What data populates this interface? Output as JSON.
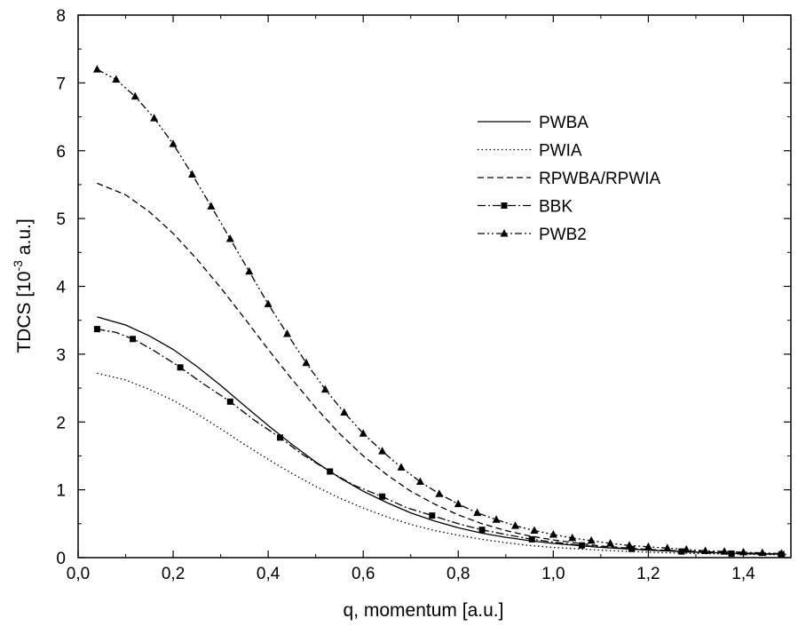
{
  "chart_data": {
    "type": "line",
    "xlabel": "q, momentum [a.u.]",
    "ylabel": {
      "prefix": "TDCS [10",
      "exponent": "-3",
      "suffix": " a.u.]"
    },
    "xlim": [
      0.0,
      1.5
    ],
    "ylim": [
      0,
      8
    ],
    "x_ticks": [
      0.0,
      0.2,
      0.4,
      0.6,
      0.8,
      1.0,
      1.2,
      1.4
    ],
    "x_tick_labels": [
      "0,0",
      "0,2",
      "0,4",
      "0,6",
      "0,8",
      "1,0",
      "1,2",
      "1,4"
    ],
    "y_ticks": [
      0,
      1,
      2,
      3,
      4,
      5,
      6,
      7,
      8
    ],
    "y_tick_labels": [
      "0",
      "1",
      "2",
      "3",
      "4",
      "5",
      "6",
      "7",
      "8"
    ],
    "grid": false,
    "legend_position": "top-right",
    "series": [
      {
        "name": "PWBA",
        "style": "solid",
        "marker": "none",
        "points": [
          [
            0.04,
            3.55
          ],
          [
            0.1,
            3.43
          ],
          [
            0.15,
            3.27
          ],
          [
            0.2,
            3.07
          ],
          [
            0.25,
            2.82
          ],
          [
            0.3,
            2.54
          ],
          [
            0.35,
            2.24
          ],
          [
            0.4,
            1.95
          ],
          [
            0.45,
            1.67
          ],
          [
            0.5,
            1.41
          ],
          [
            0.55,
            1.18
          ],
          [
            0.6,
            0.98
          ],
          [
            0.65,
            0.81
          ],
          [
            0.7,
            0.66
          ],
          [
            0.75,
            0.54
          ],
          [
            0.8,
            0.44
          ],
          [
            0.85,
            0.36
          ],
          [
            0.9,
            0.3
          ],
          [
            0.95,
            0.25
          ],
          [
            1.0,
            0.21
          ],
          [
            1.1,
            0.15
          ],
          [
            1.2,
            0.11
          ],
          [
            1.3,
            0.08
          ],
          [
            1.4,
            0.06
          ],
          [
            1.49,
            0.05
          ]
        ]
      },
      {
        "name": "PWIA",
        "style": "dotted",
        "marker": "none",
        "points": [
          [
            0.04,
            2.72
          ],
          [
            0.1,
            2.62
          ],
          [
            0.15,
            2.48
          ],
          [
            0.2,
            2.32
          ],
          [
            0.25,
            2.12
          ],
          [
            0.3,
            1.9
          ],
          [
            0.35,
            1.67
          ],
          [
            0.4,
            1.45
          ],
          [
            0.45,
            1.24
          ],
          [
            0.5,
            1.05
          ],
          [
            0.55,
            0.88
          ],
          [
            0.6,
            0.73
          ],
          [
            0.65,
            0.6
          ],
          [
            0.7,
            0.49
          ],
          [
            0.75,
            0.4
          ],
          [
            0.8,
            0.33
          ],
          [
            0.85,
            0.27
          ],
          [
            0.9,
            0.22
          ],
          [
            0.95,
            0.18
          ],
          [
            1.0,
            0.15
          ],
          [
            1.1,
            0.11
          ],
          [
            1.2,
            0.08
          ],
          [
            1.3,
            0.06
          ],
          [
            1.4,
            0.05
          ],
          [
            1.49,
            0.04
          ]
        ]
      },
      {
        "name": "RPWBA/RPWIA",
        "style": "dashed",
        "marker": "none",
        "points": [
          [
            0.04,
            5.52
          ],
          [
            0.1,
            5.35
          ],
          [
            0.15,
            5.1
          ],
          [
            0.2,
            4.78
          ],
          [
            0.25,
            4.4
          ],
          [
            0.3,
            3.98
          ],
          [
            0.35,
            3.53
          ],
          [
            0.4,
            3.07
          ],
          [
            0.45,
            2.63
          ],
          [
            0.5,
            2.21
          ],
          [
            0.55,
            1.83
          ],
          [
            0.6,
            1.5
          ],
          [
            0.65,
            1.22
          ],
          [
            0.7,
            0.98
          ],
          [
            0.75,
            0.79
          ],
          [
            0.8,
            0.63
          ],
          [
            0.85,
            0.5
          ],
          [
            0.9,
            0.4
          ],
          [
            0.95,
            0.32
          ],
          [
            1.0,
            0.26
          ],
          [
            1.1,
            0.17
          ],
          [
            1.2,
            0.12
          ],
          [
            1.3,
            0.09
          ],
          [
            1.4,
            0.07
          ],
          [
            1.49,
            0.05
          ]
        ]
      },
      {
        "name": "BBK",
        "style": "dash-dot",
        "marker": "square",
        "points": [
          [
            0.04,
            3.37
          ],
          [
            0.08,
            3.32
          ],
          [
            0.12,
            3.21
          ],
          [
            0.16,
            3.05
          ],
          [
            0.21,
            2.83
          ],
          [
            0.26,
            2.58
          ],
          [
            0.32,
            2.3
          ],
          [
            0.37,
            2.03
          ],
          [
            0.425,
            1.77
          ],
          [
            0.47,
            1.53
          ],
          [
            0.53,
            1.27
          ],
          [
            0.58,
            1.07
          ],
          [
            0.64,
            0.9
          ],
          [
            0.69,
            0.74
          ],
          [
            0.745,
            0.62
          ],
          [
            0.8,
            0.5
          ],
          [
            0.85,
            0.41
          ],
          [
            0.9,
            0.34
          ],
          [
            0.955,
            0.27
          ],
          [
            1.0,
            0.23
          ],
          [
            1.06,
            0.18
          ],
          [
            1.16,
            0.13
          ],
          [
            1.27,
            0.09
          ],
          [
            1.37,
            0.06
          ],
          [
            1.48,
            0.05
          ]
        ],
        "marker_x": [
          0.04,
          0.115,
          0.215,
          0.32,
          0.425,
          0.53,
          0.64,
          0.745,
          0.85,
          0.955,
          1.06,
          1.165,
          1.27,
          1.375,
          1.48
        ]
      },
      {
        "name": "PWB2",
        "style": "dash-dot-dot",
        "marker": "triangle",
        "points": [
          [
            0.04,
            7.2
          ],
          [
            0.08,
            7.05
          ],
          [
            0.12,
            6.8
          ],
          [
            0.16,
            6.48
          ],
          [
            0.2,
            6.1
          ],
          [
            0.24,
            5.65
          ],
          [
            0.28,
            5.18
          ],
          [
            0.32,
            4.7
          ],
          [
            0.36,
            4.22
          ],
          [
            0.4,
            3.74
          ],
          [
            0.44,
            3.3
          ],
          [
            0.48,
            2.87
          ],
          [
            0.52,
            2.48
          ],
          [
            0.56,
            2.14
          ],
          [
            0.6,
            1.83
          ],
          [
            0.64,
            1.57
          ],
          [
            0.68,
            1.33
          ],
          [
            0.72,
            1.12
          ],
          [
            0.76,
            0.94
          ],
          [
            0.8,
            0.79
          ],
          [
            0.84,
            0.66
          ],
          [
            0.88,
            0.56
          ],
          [
            0.92,
            0.47
          ],
          [
            0.96,
            0.4
          ],
          [
            1.0,
            0.34
          ],
          [
            1.04,
            0.29
          ],
          [
            1.08,
            0.25
          ],
          [
            1.12,
            0.21
          ],
          [
            1.16,
            0.18
          ],
          [
            1.2,
            0.16
          ],
          [
            1.24,
            0.14
          ],
          [
            1.28,
            0.12
          ],
          [
            1.32,
            0.1
          ],
          [
            1.36,
            0.09
          ],
          [
            1.4,
            0.08
          ],
          [
            1.44,
            0.07
          ],
          [
            1.48,
            0.06
          ]
        ],
        "marker_x": [
          0.04,
          0.08,
          0.12,
          0.16,
          0.2,
          0.24,
          0.28,
          0.32,
          0.36,
          0.4,
          0.44,
          0.48,
          0.52,
          0.56,
          0.6,
          0.64,
          0.68,
          0.72,
          0.76,
          0.8,
          0.84,
          0.88,
          0.92,
          0.96,
          1.0,
          1.04,
          1.08,
          1.12,
          1.16,
          1.2,
          1.24,
          1.28,
          1.32,
          1.36,
          1.4,
          1.44,
          1.48
        ]
      }
    ]
  }
}
